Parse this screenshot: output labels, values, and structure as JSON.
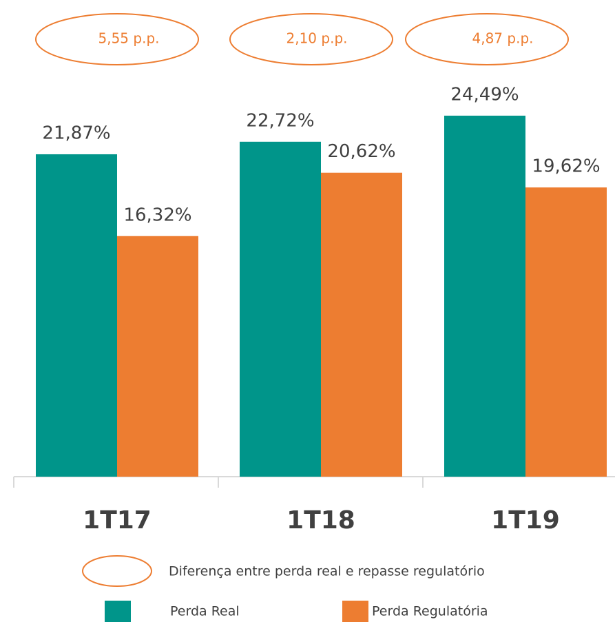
{
  "chart_data": {
    "type": "bar",
    "categories": [
      "1T17",
      "1T18",
      "1T19"
    ],
    "series": [
      {
        "name": "Perda Real",
        "color": "#00958a",
        "values": [
          21.87,
          22.72,
          24.49
        ],
        "value_labels": [
          "21,87%",
          "22,72%",
          "24,49%"
        ]
      },
      {
        "name": "Perda Regulatória",
        "color": "#ed7d31",
        "values": [
          16.32,
          20.62,
          19.62
        ],
        "value_labels": [
          "16,32%",
          "20,62%",
          "19,62%"
        ]
      }
    ],
    "annotations": [
      "5,55 p.p.",
      "2,10 p.p.",
      "4,87 p.p."
    ],
    "annotation_color": "#ed7d31",
    "annotation_legend": "Diferença entre perda real e repasse regulatório",
    "ylim": [
      0,
      25
    ]
  }
}
